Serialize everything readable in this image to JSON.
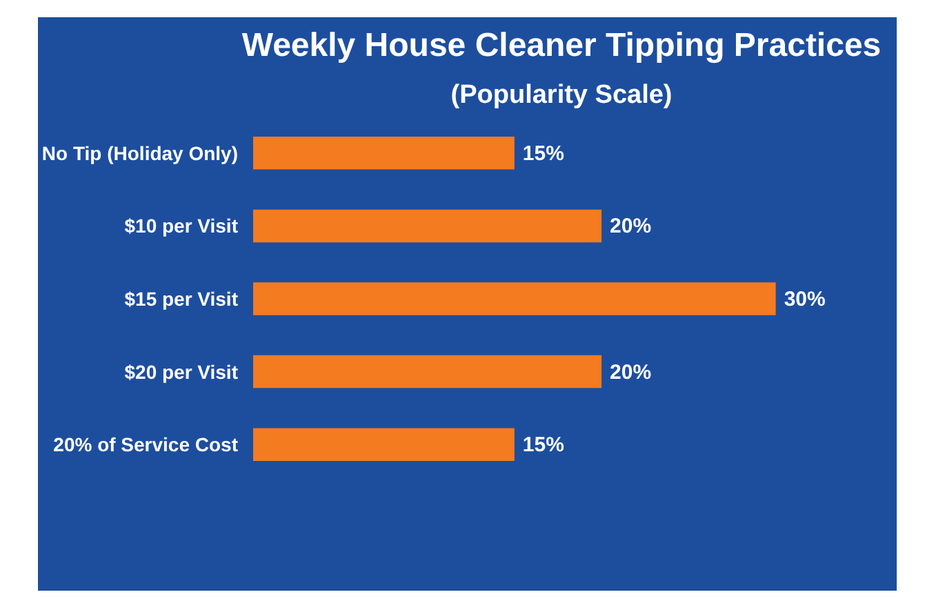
{
  "chart_data": {
    "type": "bar",
    "orientation": "horizontal",
    "title": "Weekly House Cleaner Tipping Practices",
    "subtitle": "(Popularity Scale)",
    "categories": [
      "No Tip (Holiday Only)",
      "$10 per Visit",
      "$15 per Visit",
      "$20 per Visit",
      "20% of Service Cost"
    ],
    "values": [
      15,
      20,
      30,
      20,
      15
    ],
    "value_labels": [
      "15%",
      "20%",
      "30%",
      "20%",
      "15%"
    ],
    "color": "#f47b20",
    "grid": false,
    "tick_labels": "y"
  }
}
